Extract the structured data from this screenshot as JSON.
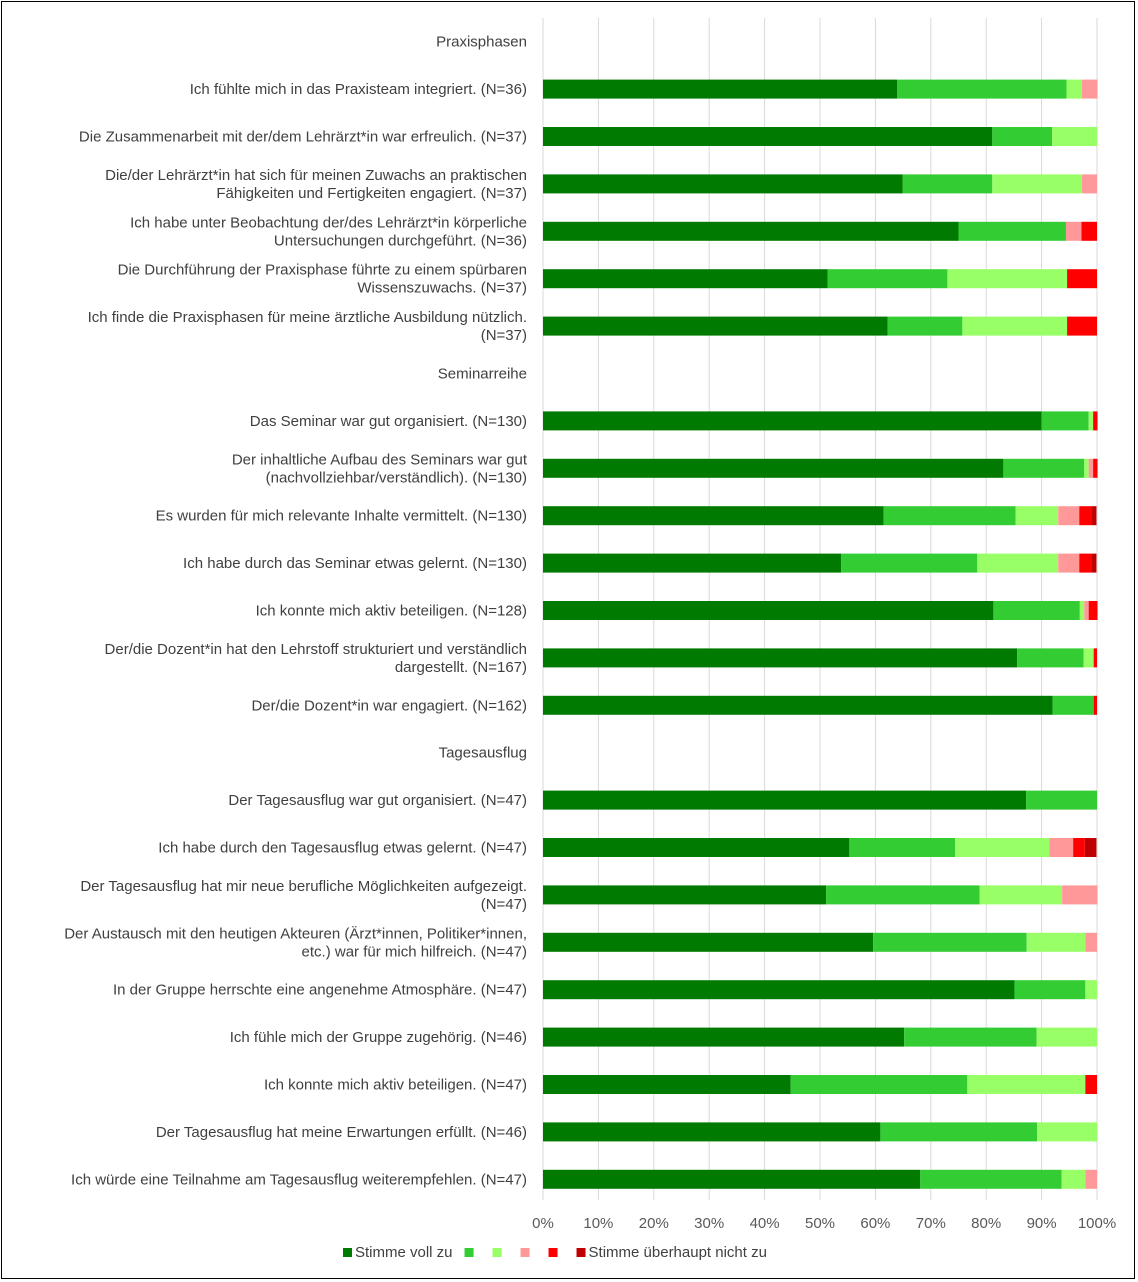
{
  "chart_data": {
    "type": "bar",
    "orientation": "horizontal",
    "stacked": true,
    "xlim": [
      0,
      100
    ],
    "x_ticks": [
      "0%",
      "10%",
      "20%",
      "30%",
      "40%",
      "50%",
      "60%",
      "70%",
      "80%",
      "90%",
      "100%"
    ],
    "grid": "vertical",
    "legend_position": "bottom",
    "series": [
      {
        "name": "Stimme voll zu",
        "color": "#007a00"
      },
      {
        "name": "",
        "color": "#33cc33"
      },
      {
        "name": "",
        "color": "#99ff66"
      },
      {
        "name": "",
        "color": "#ff9999"
      },
      {
        "name": "",
        "color": "#ff0000"
      },
      {
        "name": "Stimme überhaupt nicht zu",
        "color": "#c00000"
      }
    ],
    "rows": [
      {
        "label": [
          "Praxisphasen"
        ],
        "section": true
      },
      {
        "label": [
          "Ich fühlte mich in das Praxisteam integriert. (N=36)"
        ],
        "values": [
          63.9,
          30.6,
          2.8,
          2.8,
          0,
          0
        ]
      },
      {
        "label": [
          "Die Zusammenarbeit mit der/dem Lehrärzt*in war erfreulich. (N=37)"
        ],
        "values": [
          81.1,
          10.8,
          8.1,
          0,
          0,
          0
        ]
      },
      {
        "label": [
          "Die/der Lehrärzt*in hat sich für meinen Zuwachs an praktischen",
          "Fähigkeiten und Fertigkeiten engagiert. (N=37)"
        ],
        "values": [
          64.9,
          16.2,
          16.2,
          2.7,
          0,
          0
        ]
      },
      {
        "label": [
          "Ich habe unter Beobachtung der/des Lehrärzt*in körperliche",
          "Untersuchungen durchgeführt. (N=36)"
        ],
        "values": [
          75.0,
          19.4,
          0,
          2.8,
          2.8,
          0
        ]
      },
      {
        "label": [
          "Die Durchführung der Praxisphase führte zu einem spürbaren",
          "Wissenszuwachs. (N=37)"
        ],
        "values": [
          51.4,
          21.6,
          21.6,
          0,
          5.4,
          0
        ]
      },
      {
        "label": [
          "Ich finde die Praxisphasen für meine ärztliche Ausbildung nützlich.",
          "(N=37)"
        ],
        "values": [
          62.2,
          13.5,
          18.9,
          0,
          5.4,
          0
        ]
      },
      {
        "label": [
          "Seminarreihe"
        ],
        "section": true
      },
      {
        "label": [
          "Das Seminar war gut organisiert. (N=130)"
        ],
        "values": [
          90.0,
          8.5,
          0.8,
          0,
          0.8,
          0
        ]
      },
      {
        "label": [
          "Der inhaltliche Aufbau des Seminars war gut",
          "(nachvollziehbar/verständlich). (N=130)"
        ],
        "values": [
          83.1,
          14.6,
          0.8,
          0.8,
          0.8,
          0
        ]
      },
      {
        "label": [
          "Es wurden für mich relevante Inhalte vermittelt. (N=130)"
        ],
        "values": [
          61.5,
          23.8,
          7.7,
          3.8,
          2.3,
          0.8
        ]
      },
      {
        "label": [
          "Ich habe durch das Seminar etwas gelernt. (N=130)"
        ],
        "values": [
          53.8,
          24.6,
          14.6,
          3.8,
          2.3,
          0.8
        ]
      },
      {
        "label": [
          "Ich konnte mich aktiv beteiligen. (N=128)"
        ],
        "values": [
          81.3,
          15.6,
          0.8,
          0.8,
          1.6,
          0
        ]
      },
      {
        "label": [
          "Der/die Dozent*in hat den Lehrstoff strukturiert und verständlich",
          "dargestellt. (N=167)"
        ],
        "values": [
          85.6,
          12.0,
          1.8,
          0,
          0.6,
          0
        ]
      },
      {
        "label": [
          "Der/die Dozent*in war engagiert. (N=162)"
        ],
        "values": [
          92.0,
          7.4,
          0,
          0,
          0.6,
          0
        ]
      },
      {
        "label": [
          "Tagesausflug"
        ],
        "section": true
      },
      {
        "label": [
          "Der Tagesausflug war gut organisiert. (N=47)"
        ],
        "values": [
          87.2,
          12.8,
          0,
          0,
          0,
          0
        ]
      },
      {
        "label": [
          "Ich habe durch den Tagesausflug etwas gelernt. (N=47)"
        ],
        "values": [
          55.3,
          19.1,
          17.0,
          4.3,
          2.1,
          2.1
        ]
      },
      {
        "label": [
          "Der Tagesausflug hat mir neue berufliche Möglichkeiten aufgezeigt.",
          "(N=47)"
        ],
        "values": [
          51.1,
          27.7,
          14.9,
          6.4,
          0,
          0
        ]
      },
      {
        "label": [
          "Der Austausch mit den heutigen Akteuren (Ärzt*innen, Politiker*innen,",
          "etc.) war für mich hilfreich. (N=47)"
        ],
        "values": [
          59.6,
          27.7,
          10.6,
          2.1,
          0,
          0
        ]
      },
      {
        "label": [
          "In der Gruppe herrschte eine angenehme Atmosphäre. (N=47)"
        ],
        "values": [
          85.1,
          12.8,
          2.1,
          0,
          0,
          0
        ]
      },
      {
        "label": [
          "Ich fühle mich der Gruppe zugehörig. (N=46)"
        ],
        "values": [
          65.2,
          23.9,
          10.9,
          0,
          0,
          0
        ]
      },
      {
        "label": [
          "Ich konnte mich aktiv beteiligen. (N=47)"
        ],
        "values": [
          44.7,
          31.9,
          21.3,
          0,
          2.1,
          0
        ]
      },
      {
        "label": [
          "Der Tagesausflug hat meine Erwartungen erfüllt. (N=46)"
        ],
        "values": [
          60.9,
          28.3,
          10.9,
          0,
          0,
          0
        ]
      },
      {
        "label": [
          "Ich würde eine Teilnahme am Tagesausflug weiterempfehlen. (N=47)"
        ],
        "values": [
          68.1,
          25.5,
          4.3,
          2.1,
          0,
          0
        ]
      }
    ]
  }
}
